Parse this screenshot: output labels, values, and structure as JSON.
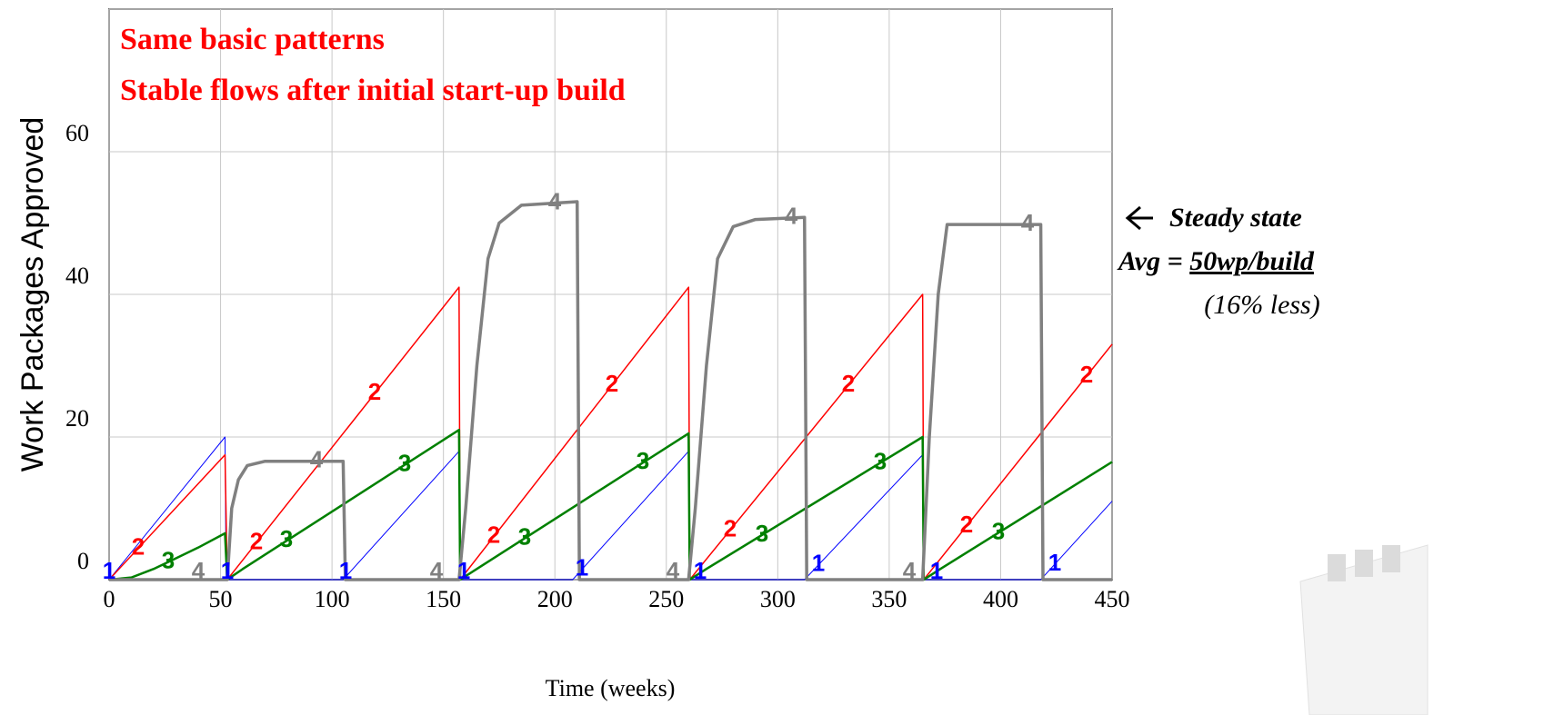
{
  "chart_data": {
    "type": "line",
    "annotations": [
      "Same basic patterns",
      "Stable flows after initial start-up build"
    ],
    "side_note": {
      "line1": "Steady state",
      "avg_prefix": "Avg = ",
      "avg_value": "50wp/build",
      "line3": "(16% less)"
    },
    "y_label": "Work Packages Approved",
    "x_label": "Time (weeks)",
    "xlim": [
      0,
      450
    ],
    "xticks": [
      0,
      50,
      100,
      150,
      200,
      250,
      300,
      350,
      400,
      450
    ],
    "ylim": [
      0,
      80
    ],
    "yticks": [
      0,
      20,
      40,
      60,
      80
    ],
    "grid": true,
    "series": [
      {
        "name": "1",
        "color": "#0000ff",
        "x": [
          0,
          52,
          52.5,
          105,
          157,
          157.5,
          208,
          260,
          260.5,
          312,
          365,
          365.5,
          418,
          450
        ],
        "values": [
          0,
          20,
          0,
          0,
          18,
          0,
          0,
          18,
          0,
          0,
          17.5,
          0,
          0,
          11
        ]
      },
      {
        "name": "2",
        "color": "#ff0000",
        "x": [
          0,
          52,
          53,
          157,
          157.5,
          260,
          260.5,
          365,
          365.5,
          450
        ],
        "values": [
          0,
          17.5,
          0,
          41,
          0,
          41,
          0,
          40,
          0,
          33
        ]
      },
      {
        "name": "3",
        "color": "#008000",
        "x": [
          0,
          10,
          20,
          30,
          40,
          52,
          53,
          60,
          157,
          157.5,
          165,
          260,
          260.5,
          268,
          365,
          365.5,
          373,
          450
        ],
        "values": [
          0,
          0.3,
          1.5,
          3,
          4.5,
          6.5,
          0,
          1.5,
          21,
          0,
          1.5,
          20.5,
          0,
          1.5,
          20,
          0,
          1.5,
          16.5
        ]
      },
      {
        "name": "4",
        "color": "#808080",
        "x": [
          0,
          53,
          55,
          58,
          62,
          70,
          105,
          106,
          157,
          160,
          165,
          170,
          175,
          185,
          210,
          211,
          260,
          263,
          268,
          273,
          280,
          290,
          312,
          313,
          365,
          368,
          372,
          376,
          418,
          419,
          450
        ],
        "values": [
          0,
          0,
          10,
          14,
          16,
          16.6,
          16.6,
          0,
          0,
          10,
          30,
          45,
          50,
          52.5,
          53,
          0,
          0,
          10,
          30,
          45,
          49.5,
          50.5,
          50.8,
          0,
          0,
          20,
          40,
          49.8,
          49.8,
          0,
          0
        ]
      }
    ]
  }
}
